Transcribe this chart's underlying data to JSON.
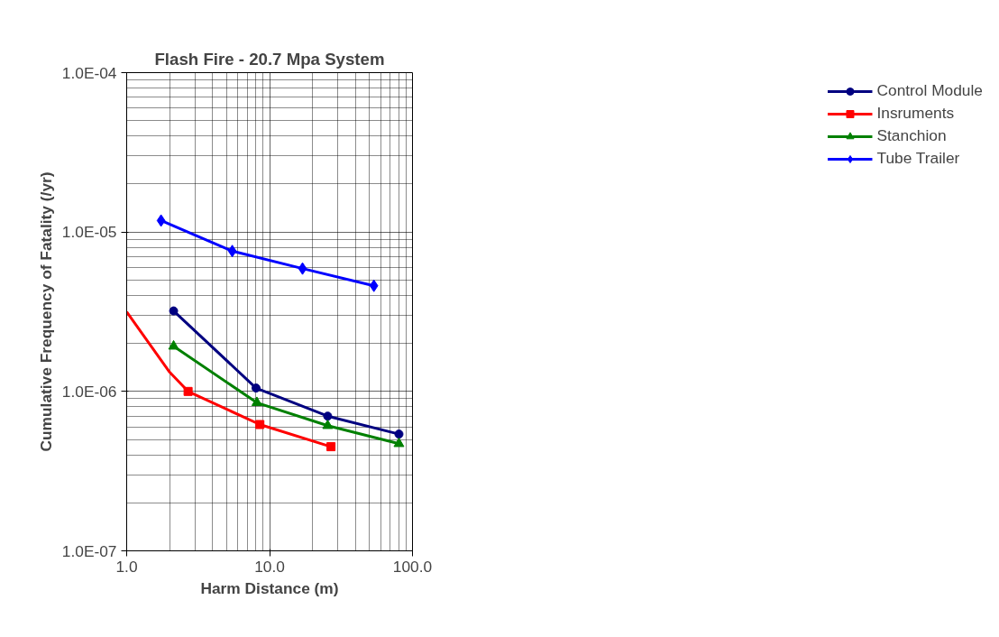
{
  "chart_data": {
    "type": "line",
    "title": "Flash Fire - 20.7 Mpa System",
    "xlabel": "Harm Distance (m)",
    "ylabel": "Cumulative Frequency of Fatality (/yr)",
    "log": "xy",
    "grid": true,
    "legend": "right",
    "line_style": "solid",
    "xlim": [
      1,
      100
    ],
    "xticks": [
      {
        "value": 1,
        "label": "1.0"
      },
      {
        "value": 10,
        "label": "10.0"
      },
      {
        "value": 100,
        "label": "100.0"
      }
    ],
    "ylim": [
      1e-07,
      0.0001
    ],
    "yticks": [
      {
        "value": 1e-07,
        "label": "1.0E-07"
      },
      {
        "value": 1e-06,
        "label": "1.0E-06"
      },
      {
        "value": 1e-05,
        "label": "1.0E-05"
      },
      {
        "value": 0.0001,
        "label": "1.0E-04"
      }
    ],
    "series": [
      {
        "name": "Control Module",
        "color": "#000080",
        "marker": "circle",
        "x": [
          2.13,
          8.04,
          25.5,
          80.4
        ],
        "values": [
          3.2e-06,
          1.05e-06,
          7e-07,
          5.4e-07
        ]
      },
      {
        "name": "Insruments",
        "color": "#ff0000",
        "marker": "square",
        "x": [
          2.69,
          8.55,
          26.9
        ],
        "values": [
          1e-06,
          6.2e-07,
          4.5e-07
        ]
      },
      {
        "color": "#ff0000",
        "marker": "none",
        "x": [
          1.0,
          2.0,
          2.69
        ],
        "values": [
          3.16e-06,
          1.32e-06,
          1e-06
        ]
      },
      {
        "name": "Stanchion",
        "color": "#008000",
        "marker": "triangle",
        "x": [
          2.13,
          8.15,
          25.5,
          80.4
        ],
        "values": [
          1.92e-06,
          8.5e-07,
          6.1e-07,
          4.7e-07
        ]
      },
      {
        "name": "Tube Trailer",
        "color": "#0000ff",
        "marker": "diamond",
        "x": [
          1.74,
          5.48,
          17.0,
          53.7
        ],
        "values": [
          1.18e-05,
          7.6e-06,
          5.9e-06,
          4.6e-06
        ]
      }
    ]
  }
}
